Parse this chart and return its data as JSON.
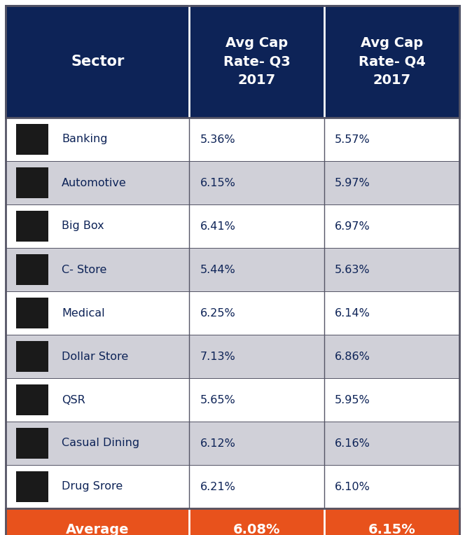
{
  "header_bg_color": "#0d2357",
  "header_text_color": "#ffffff",
  "avg_row_bg_color": "#e8521c",
  "avg_row_text_color": "#ffffff",
  "row_colors": [
    "#ffffff",
    "#d0d0d8",
    "#ffffff",
    "#d0d0d8",
    "#ffffff",
    "#d0d0d8",
    "#ffffff",
    "#d0d0d8",
    "#ffffff"
  ],
  "border_color": "#555566",
  "body_text_color": "#0d2357",
  "col_headers": [
    "Sector",
    "Avg Cap\nRate- Q3\n2017",
    "Avg Cap\nRate- Q4\n2017"
  ],
  "sectors": [
    "Banking",
    "Automotive",
    "Big Box",
    "C- Store",
    "Medical",
    "Dollar Store",
    "QSR",
    "Casual Dining",
    "Drug Srore"
  ],
  "q3_values": [
    "5.36%",
    "6.15%",
    "6.41%",
    "5.44%",
    "6.25%",
    "7.13%",
    "5.65%",
    "6.12%",
    "6.21%"
  ],
  "q4_values": [
    "5.57%",
    "5.97%",
    "6.97%",
    "5.63%",
    "6.14%",
    "6.86%",
    "5.95%",
    "6.16%",
    "6.10%"
  ],
  "avg_label": "Average",
  "avg_q3": "6.08%",
  "avg_q4": "6.15%",
  "figsize": [
    6.64,
    7.64
  ],
  "dpi": 100
}
